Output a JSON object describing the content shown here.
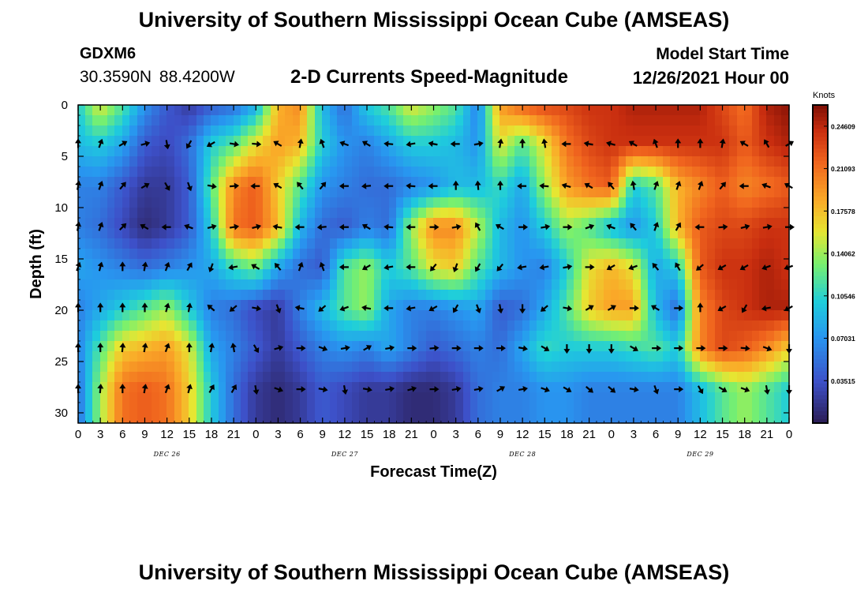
{
  "header": {
    "title": "University of Southern Mississippi Ocean Cube (AMSEAS)",
    "station": "GDXM6",
    "coords": "30.3590N  88.4200W",
    "subtitle": "2-D Currents Speed-Magnitude",
    "model_start_label": "Model Start Time",
    "model_start_value": "12/26/2021 Hour 00"
  },
  "footer": {
    "title": "University of Southern Mississippi Ocean Cube (AMSEAS)"
  },
  "chart_data": {
    "type": "heatmap",
    "title": "2-D Currents Speed-Magnitude",
    "xlabel": "Forecast Time(Z)",
    "ylabel": "Depth (ft)",
    "x_hours": [
      0,
      3,
      6,
      9,
      12,
      15,
      18,
      21,
      24,
      27,
      30,
      33,
      36,
      39,
      42,
      45,
      48,
      51,
      54,
      57,
      60,
      63,
      66,
      69,
      72,
      75,
      78,
      81,
      84,
      87,
      90,
      93,
      96
    ],
    "xlim": [
      0,
      96
    ],
    "ylim": [
      0,
      31
    ],
    "x_tick_labels": [
      "0",
      "3",
      "6",
      "9",
      "12",
      "15",
      "18",
      "21",
      "0",
      "3",
      "6",
      "9",
      "12",
      "15",
      "18",
      "21",
      "0",
      "3",
      "6",
      "9",
      "12",
      "15",
      "18",
      "21",
      "0",
      "3",
      "6",
      "9",
      "12",
      "15",
      "18",
      "21",
      "0"
    ],
    "day_labels": [
      {
        "hour": 12,
        "label": "DEC 26"
      },
      {
        "hour": 36,
        "label": "DEC 27"
      },
      {
        "hour": 60,
        "label": "DEC 28"
      },
      {
        "hour": 84,
        "label": "DEC 29"
      }
    ],
    "y_ticks": [
      0,
      5,
      10,
      15,
      20,
      25,
      30
    ],
    "depths": [
      0,
      3.8,
      7.9,
      11.9,
      15.8,
      19.8,
      23.7,
      27.7
    ],
    "colorbar": {
      "unit": "Knots",
      "min": 0,
      "max": 0.26366,
      "ticks": [
        "0.24609",
        "0.21093",
        "0.17578",
        "0.14062",
        "0.10546",
        "0.07031",
        "0.03515"
      ]
    },
    "speed": [
      [
        0.1,
        0.16,
        0.12,
        0.07,
        0.04,
        0.02,
        0.04,
        0.05,
        0.08,
        0.18,
        0.2,
        0.09,
        0.05,
        0.1,
        0.12,
        0.16,
        0.14,
        0.12,
        0.06,
        0.19,
        0.22,
        0.23,
        0.23,
        0.24,
        0.24,
        0.25,
        0.25,
        0.25,
        0.25,
        0.23,
        0.21,
        0.25,
        0.26
      ],
      [
        0.09,
        0.1,
        0.08,
        0.04,
        0.03,
        0.05,
        0.1,
        0.12,
        0.16,
        0.19,
        0.18,
        0.1,
        0.07,
        0.06,
        0.08,
        0.1,
        0.1,
        0.09,
        0.07,
        0.16,
        0.12,
        0.16,
        0.21,
        0.23,
        0.24,
        0.24,
        0.24,
        0.24,
        0.24,
        0.24,
        0.22,
        0.24,
        0.25
      ],
      [
        0.06,
        0.06,
        0.04,
        0.02,
        0.02,
        0.04,
        0.12,
        0.2,
        0.22,
        0.17,
        0.12,
        0.07,
        0.06,
        0.05,
        0.05,
        0.06,
        0.07,
        0.09,
        0.09,
        0.11,
        0.08,
        0.14,
        0.19,
        0.21,
        0.22,
        0.1,
        0.12,
        0.18,
        0.2,
        0.22,
        0.2,
        0.21,
        0.22
      ],
      [
        0.06,
        0.05,
        0.03,
        0.01,
        0.02,
        0.04,
        0.1,
        0.21,
        0.22,
        0.18,
        0.09,
        0.05,
        0.04,
        0.06,
        0.05,
        0.14,
        0.2,
        0.2,
        0.15,
        0.09,
        0.07,
        0.1,
        0.14,
        0.12,
        0.09,
        0.07,
        0.1,
        0.18,
        0.22,
        0.23,
        0.23,
        0.24,
        0.24
      ],
      [
        0.08,
        0.07,
        0.06,
        0.05,
        0.06,
        0.07,
        0.08,
        0.11,
        0.13,
        0.08,
        0.05,
        0.04,
        0.12,
        0.14,
        0.1,
        0.12,
        0.16,
        0.17,
        0.12,
        0.09,
        0.07,
        0.06,
        0.1,
        0.16,
        0.18,
        0.16,
        0.08,
        0.1,
        0.22,
        0.24,
        0.24,
        0.25,
        0.24
      ],
      [
        0.06,
        0.08,
        0.1,
        0.12,
        0.14,
        0.1,
        0.06,
        0.05,
        0.03,
        0.02,
        0.06,
        0.09,
        0.12,
        0.14,
        0.08,
        0.06,
        0.06,
        0.07,
        0.08,
        0.04,
        0.05,
        0.08,
        0.12,
        0.17,
        0.19,
        0.19,
        0.09,
        0.05,
        0.2,
        0.23,
        0.24,
        0.25,
        0.25
      ],
      [
        0.06,
        0.12,
        0.17,
        0.18,
        0.19,
        0.16,
        0.08,
        0.06,
        0.04,
        0.02,
        0.04,
        0.06,
        0.07,
        0.06,
        0.08,
        0.06,
        0.04,
        0.05,
        0.06,
        0.05,
        0.08,
        0.11,
        0.1,
        0.1,
        0.1,
        0.11,
        0.12,
        0.1,
        0.2,
        0.23,
        0.22,
        0.2,
        0.17
      ],
      [
        0.05,
        0.14,
        0.21,
        0.22,
        0.21,
        0.17,
        0.1,
        0.05,
        0.02,
        0.01,
        0.02,
        0.04,
        0.03,
        0.02,
        0.02,
        0.01,
        0.01,
        0.02,
        0.05,
        0.06,
        0.06,
        0.07,
        0.07,
        0.06,
        0.06,
        0.06,
        0.06,
        0.06,
        0.09,
        0.12,
        0.14,
        0.12,
        0.1
      ]
    ],
    "direction_deg": [
      [
        0,
        0,
        0,
        0,
        0,
        0,
        0,
        0,
        0,
        0,
        0,
        0,
        0,
        0,
        0,
        0,
        0,
        0,
        0,
        0,
        0,
        0,
        0,
        0,
        0,
        0,
        0,
        0,
        0,
        0,
        0,
        0,
        0
      ],
      [
        0,
        20,
        60,
        75,
        170,
        210,
        240,
        100,
        95,
        300,
        10,
        340,
        290,
        300,
        275,
        260,
        280,
        270,
        80,
        10,
        0,
        350,
        270,
        280,
        285,
        300,
        340,
        0,
        0,
        10,
        300,
        330,
        60
      ],
      [
        10,
        20,
        40,
        60,
        150,
        160,
        100,
        85,
        270,
        300,
        320,
        40,
        270,
        265,
        270,
        275,
        270,
        0,
        355,
        0,
        270,
        275,
        285,
        300,
        320,
        350,
        20,
        20,
        20,
        40,
        270,
        290,
        300
      ],
      [
        10,
        20,
        45,
        300,
        270,
        290,
        75,
        80,
        75,
        280,
        270,
        265,
        270,
        300,
        275,
        270,
        90,
        80,
        330,
        300,
        90,
        80,
        90,
        70,
        290,
        320,
        20,
        30,
        270,
        85,
        75,
        80,
        90
      ],
      [
        20,
        15,
        0,
        10,
        20,
        30,
        200,
        260,
        300,
        320,
        20,
        340,
        270,
        240,
        260,
        270,
        220,
        200,
        210,
        220,
        260,
        260,
        80,
        90,
        240,
        250,
        320,
        330,
        230,
        240,
        240,
        250,
        250
      ],
      [
        0,
        0,
        0,
        0,
        15,
        10,
        310,
        230,
        100,
        160,
        280,
        230,
        250,
        280,
        270,
        260,
        240,
        210,
        160,
        170,
        180,
        230,
        100,
        60,
        60,
        90,
        300,
        90,
        0,
        240,
        210,
        260,
        240
      ],
      [
        0,
        0,
        5,
        10,
        20,
        0,
        10,
        350,
        150,
        75,
        90,
        110,
        80,
        60,
        80,
        90,
        85,
        90,
        90,
        90,
        100,
        120,
        180,
        180,
        180,
        120,
        90,
        90,
        90,
        90,
        95,
        110,
        180
      ],
      [
        0,
        5,
        0,
        10,
        20,
        15,
        30,
        30,
        170,
        110,
        90,
        100,
        170,
        100,
        80,
        75,
        90,
        80,
        80,
        60,
        80,
        110,
        120,
        130,
        130,
        100,
        160,
        90,
        150,
        120,
        110,
        170,
        180
      ]
    ]
  }
}
